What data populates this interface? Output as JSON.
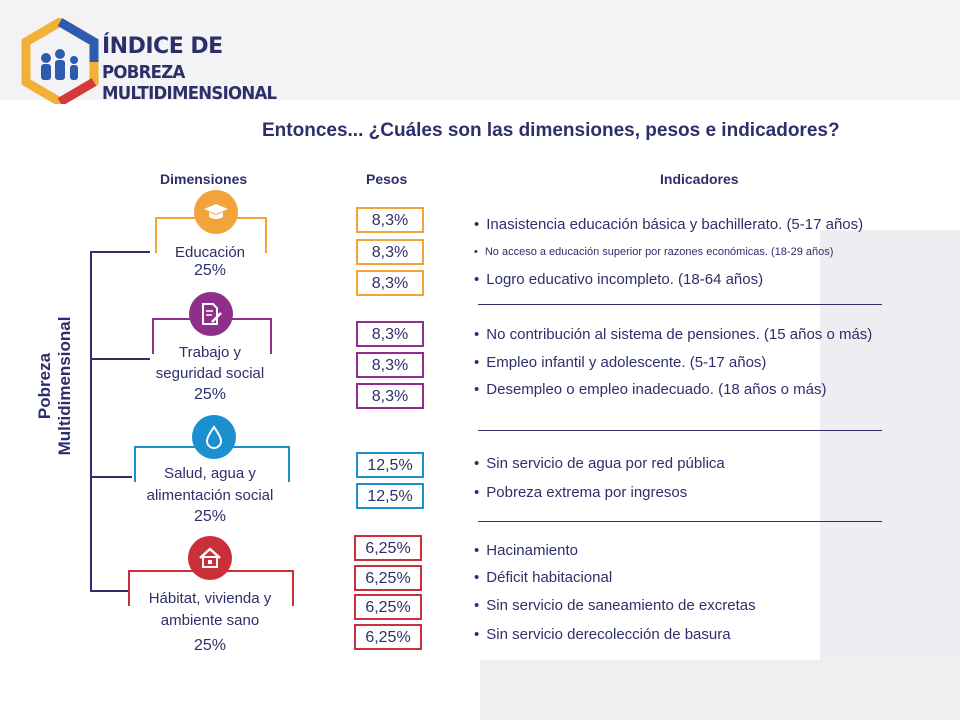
{
  "logo": {
    "line1": "ÍNDICE DE",
    "line2": "POBREZA MULTIDIMENSIONAL"
  },
  "title": "Entonces... ¿Cuáles son las dimensiones, pesos e indicadores?",
  "headers": {
    "dimensiones": "Dimensiones",
    "pesos": "Pesos",
    "indicadores": "Indicadores"
  },
  "root_label": {
    "line1": "Pobreza",
    "line2": "Multidimensional"
  },
  "dimensions": [
    {
      "name_line1": "Educación",
      "name_line2": "",
      "weight": "25%",
      "color": "#f2a33a",
      "icon": "graduation-cap-icon",
      "pesos": [
        "8,3%",
        "8,3%",
        "8,3%"
      ],
      "indicators": [
        "Inasistencia educación básica y bachillerato. (5-17 años)",
        "No acceso a educación superior por razones económicas. (18-29 años)",
        "Logro educativo incompleto. (18-64 años)"
      ]
    },
    {
      "name_line1": "Trabajo y",
      "name_line2": "seguridad social",
      "weight": "25%",
      "color": "#8e2f8c",
      "icon": "document-pen-icon",
      "pesos": [
        "8,3%",
        "8,3%",
        "8,3%"
      ],
      "indicators": [
        "No contribución al sistema de pensiones. (15 años o más)",
        "Empleo infantil y adolescente. (5-17 años)",
        "Desempleo o empleo inadecuado. (18 años o más)"
      ]
    },
    {
      "name_line1": "Salud, agua y",
      "name_line2": "alimentación social",
      "weight": "25%",
      "color": "#1c8fcf",
      "icon": "water-drop-icon",
      "pesos": [
        "12,5%",
        "12,5%"
      ],
      "indicators": [
        "Sin servicio de agua por red pública",
        "Pobreza extrema por ingresos"
      ]
    },
    {
      "name_line1": "Hábitat, vivienda y",
      "name_line2": "ambiente sano",
      "weight": "25%",
      "color": "#c9303a",
      "icon": "house-icon",
      "pesos": [
        "6,25%",
        "6,25%",
        "6,25%",
        "6,25%"
      ],
      "indicators": [
        "Hacinamiento",
        "Déficit habitacional",
        "Sin servicio de saneamiento de excretas",
        "Sin servicio derecolección de basura"
      ]
    }
  ]
}
